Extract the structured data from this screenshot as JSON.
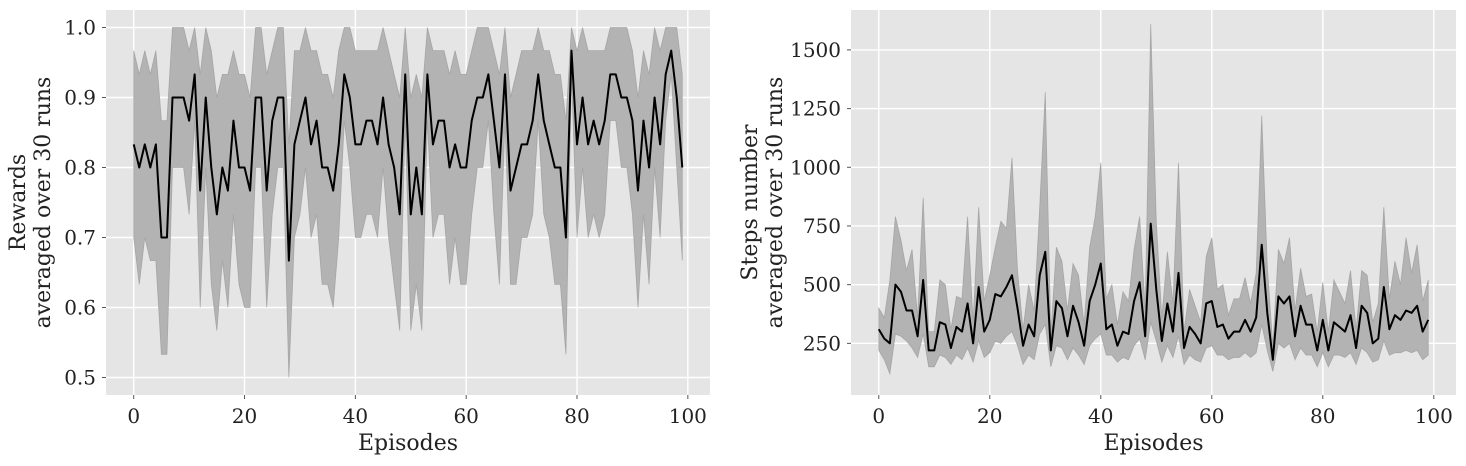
{
  "chart_data": [
    {
      "type": "line",
      "title": "",
      "xlabel": "Episodes",
      "ylabel_lines": [
        "Rewards",
        "averaged over 30 runs"
      ],
      "xlim": [
        -5,
        104
      ],
      "ylim": [
        0.475,
        1.025
      ],
      "xticks": [
        0,
        20,
        40,
        60,
        80,
        100
      ],
      "yticks": [
        0.5,
        0.6,
        0.7,
        0.8,
        0.9,
        1.0
      ],
      "ytick_labels": [
        "0.5",
        "0.6",
        "0.7",
        "0.8",
        "0.9",
        "1.0"
      ],
      "grid": true,
      "series": [
        {
          "x": [
            0,
            1,
            2,
            3,
            4,
            5,
            6,
            7,
            8,
            9,
            10,
            11,
            12,
            13,
            14,
            15,
            16,
            17,
            18,
            19,
            20,
            21,
            22,
            23,
            24,
            25,
            26,
            27,
            28,
            29,
            30,
            31,
            32,
            33,
            34,
            35,
            36,
            37,
            38,
            39,
            40,
            41,
            42,
            43,
            44,
            45,
            46,
            47,
            48,
            49,
            50,
            51,
            52,
            53,
            54,
            55,
            56,
            57,
            58,
            59,
            60,
            61,
            62,
            63,
            64,
            65,
            66,
            67,
            68,
            69,
            70,
            71,
            72,
            73,
            74,
            75,
            76,
            77,
            78,
            79,
            80,
            81,
            82,
            83,
            84,
            85,
            86,
            87,
            88,
            89,
            90,
            91,
            92,
            93,
            94,
            95,
            96,
            97,
            98,
            99
          ],
          "mean": [
            0.833,
            0.8,
            0.833,
            0.8,
            0.833,
            0.7,
            0.7,
            0.9,
            0.9,
            0.9,
            0.867,
            0.933,
            0.767,
            0.9,
            0.8,
            0.733,
            0.8,
            0.767,
            0.867,
            0.8,
            0.8,
            0.767,
            0.9,
            0.9,
            0.767,
            0.867,
            0.9,
            0.9,
            0.667,
            0.833,
            0.867,
            0.9,
            0.833,
            0.867,
            0.8,
            0.8,
            0.767,
            0.833,
            0.933,
            0.9,
            0.833,
            0.833,
            0.867,
            0.867,
            0.833,
            0.9,
            0.833,
            0.8,
            0.733,
            0.933,
            0.733,
            0.8,
            0.733,
            0.933,
            0.833,
            0.867,
            0.867,
            0.8,
            0.833,
            0.8,
            0.8,
            0.867,
            0.9,
            0.9,
            0.933,
            0.867,
            0.8,
            0.933,
            0.767,
            0.8,
            0.833,
            0.833,
            0.867,
            0.933,
            0.867,
            0.833,
            0.8,
            0.8,
            0.7,
            0.967,
            0.833,
            0.9,
            0.833,
            0.867,
            0.833,
            0.867,
            0.933,
            0.933,
            0.9,
            0.9,
            0.867,
            0.767,
            0.867,
            0.8,
            0.9,
            0.833,
            0.933,
            0.967,
            0.9,
            0.8
          ],
          "lower": [
            0.7,
            0.633,
            0.7,
            0.667,
            0.667,
            0.533,
            0.533,
            0.8,
            0.8,
            0.8,
            0.733,
            0.867,
            0.6,
            0.8,
            0.633,
            0.567,
            0.667,
            0.6,
            0.733,
            0.633,
            0.6,
            0.6,
            0.8,
            0.8,
            0.6,
            0.733,
            0.8,
            0.8,
            0.5,
            0.7,
            0.733,
            0.8,
            0.7,
            0.733,
            0.633,
            0.633,
            0.6,
            0.7,
            0.867,
            0.8,
            0.7,
            0.7,
            0.733,
            0.733,
            0.7,
            0.8,
            0.7,
            0.633,
            0.567,
            0.867,
            0.567,
            0.633,
            0.567,
            0.867,
            0.7,
            0.733,
            0.733,
            0.633,
            0.7,
            0.633,
            0.633,
            0.733,
            0.8,
            0.8,
            0.867,
            0.733,
            0.633,
            0.867,
            0.633,
            0.633,
            0.7,
            0.7,
            0.733,
            0.867,
            0.733,
            0.7,
            0.633,
            0.633,
            0.533,
            0.933,
            0.7,
            0.8,
            0.7,
            0.733,
            0.7,
            0.733,
            0.867,
            0.867,
            0.8,
            0.8,
            0.733,
            0.6,
            0.733,
            0.633,
            0.8,
            0.7,
            0.867,
            0.933,
            0.8,
            0.667
          ],
          "upper": [
            0.967,
            0.933,
            0.967,
            0.933,
            0.967,
            0.867,
            0.867,
            1.0,
            1.0,
            1.0,
            0.967,
            1.0,
            0.933,
            1.0,
            0.967,
            0.9,
            0.933,
            0.933,
            0.967,
            0.933,
            0.933,
            0.9,
            1.0,
            1.0,
            0.933,
            0.967,
            1.0,
            1.0,
            0.833,
            0.967,
            0.967,
            1.0,
            0.967,
            0.967,
            0.933,
            0.933,
            0.9,
            0.967,
            1.0,
            1.0,
            0.967,
            0.967,
            0.967,
            0.967,
            0.967,
            1.0,
            0.967,
            0.933,
            0.9,
            1.0,
            0.9,
            0.933,
            0.9,
            1.0,
            0.967,
            0.967,
            0.967,
            0.933,
            0.967,
            0.933,
            0.933,
            0.967,
            1.0,
            1.0,
            1.0,
            0.967,
            0.933,
            1.0,
            0.9,
            0.933,
            0.967,
            0.967,
            0.967,
            1.0,
            0.967,
            0.967,
            0.933,
            0.933,
            0.867,
            1.0,
            0.967,
            1.0,
            0.967,
            0.967,
            0.967,
            0.967,
            1.0,
            1.0,
            1.0,
            1.0,
            0.967,
            0.9,
            0.967,
            0.933,
            1.0,
            0.967,
            1.0,
            1.0,
            1.0,
            0.933
          ]
        }
      ]
    },
    {
      "type": "line",
      "title": "",
      "xlabel": "Episodes",
      "ylabel_lines": [
        "Steps number",
        "averaged over 30 runs"
      ],
      "xlim": [
        -5,
        104
      ],
      "ylim": [
        30,
        1670
      ],
      "xticks": [
        0,
        20,
        40,
        60,
        80,
        100
      ],
      "yticks": [
        250,
        500,
        750,
        1000,
        1250,
        1500
      ],
      "ytick_labels": [
        "250",
        "500",
        "750",
        "1000",
        "1250",
        "1500"
      ],
      "grid": true,
      "series": [
        {
          "x": [
            0,
            1,
            2,
            3,
            4,
            5,
            6,
            7,
            8,
            9,
            10,
            11,
            12,
            13,
            14,
            15,
            16,
            17,
            18,
            19,
            20,
            21,
            22,
            23,
            24,
            25,
            26,
            27,
            28,
            29,
            30,
            31,
            32,
            33,
            34,
            35,
            36,
            37,
            38,
            39,
            40,
            41,
            42,
            43,
            44,
            45,
            46,
            47,
            48,
            49,
            50,
            51,
            52,
            53,
            54,
            55,
            56,
            57,
            58,
            59,
            60,
            61,
            62,
            63,
            64,
            65,
            66,
            67,
            68,
            69,
            70,
            71,
            72,
            73,
            74,
            75,
            76,
            77,
            78,
            79,
            80,
            81,
            82,
            83,
            84,
            85,
            86,
            87,
            88,
            89,
            90,
            91,
            92,
            93,
            94,
            95,
            96,
            97,
            98,
            99
          ],
          "mean": [
            310,
            270,
            250,
            500,
            470,
            390,
            390,
            280,
            520,
            220,
            220,
            340,
            330,
            230,
            320,
            300,
            420,
            250,
            490,
            300,
            350,
            460,
            450,
            490,
            540,
            400,
            240,
            330,
            280,
            540,
            640,
            220,
            430,
            400,
            280,
            410,
            340,
            240,
            430,
            500,
            590,
            310,
            330,
            240,
            300,
            290,
            430,
            510,
            280,
            760,
            480,
            260,
            420,
            300,
            550,
            230,
            320,
            290,
            250,
            420,
            430,
            320,
            330,
            270,
            300,
            300,
            350,
            300,
            360,
            670,
            380,
            180,
            450,
            420,
            450,
            280,
            410,
            330,
            330,
            220,
            350,
            220,
            340,
            320,
            300,
            370,
            230,
            410,
            380,
            250,
            270,
            490,
            310,
            370,
            350,
            390,
            380,
            410,
            300,
            350
          ],
          "lower": [
            220,
            180,
            120,
            290,
            280,
            260,
            230,
            190,
            290,
            150,
            150,
            200,
            190,
            160,
            200,
            180,
            230,
            170,
            260,
            190,
            210,
            260,
            250,
            280,
            300,
            240,
            160,
            200,
            180,
            290,
            330,
            150,
            240,
            230,
            180,
            230,
            200,
            160,
            240,
            270,
            290,
            200,
            200,
            170,
            190,
            180,
            240,
            270,
            180,
            340,
            260,
            170,
            240,
            190,
            280,
            160,
            200,
            180,
            170,
            230,
            240,
            200,
            200,
            180,
            190,
            190,
            210,
            190,
            210,
            330,
            220,
            130,
            250,
            230,
            250,
            180,
            230,
            200,
            200,
            150,
            210,
            150,
            200,
            200,
            190,
            210,
            160,
            230,
            210,
            170,
            180,
            260,
            200,
            210,
            210,
            220,
            210,
            220,
            180,
            200
          ],
          "upper": [
            400,
            360,
            520,
            790,
            690,
            560,
            650,
            360,
            870,
            300,
            300,
            520,
            500,
            310,
            450,
            440,
            790,
            340,
            830,
            430,
            540,
            660,
            770,
            740,
            1040,
            560,
            310,
            500,
            390,
            830,
            1320,
            290,
            660,
            600,
            390,
            590,
            540,
            330,
            660,
            790,
            1020,
            440,
            500,
            330,
            470,
            430,
            650,
            790,
            400,
            1610,
            770,
            360,
            640,
            420,
            1020,
            300,
            480,
            410,
            340,
            620,
            700,
            480,
            500,
            370,
            440,
            440,
            530,
            420,
            550,
            1220,
            580,
            240,
            650,
            590,
            700,
            390,
            570,
            450,
            460,
            300,
            510,
            300,
            520,
            470,
            420,
            560,
            310,
            560,
            540,
            340,
            420,
            830,
            440,
            600,
            500,
            700,
            550,
            670,
            430,
            520
          ]
        }
      ]
    }
  ]
}
